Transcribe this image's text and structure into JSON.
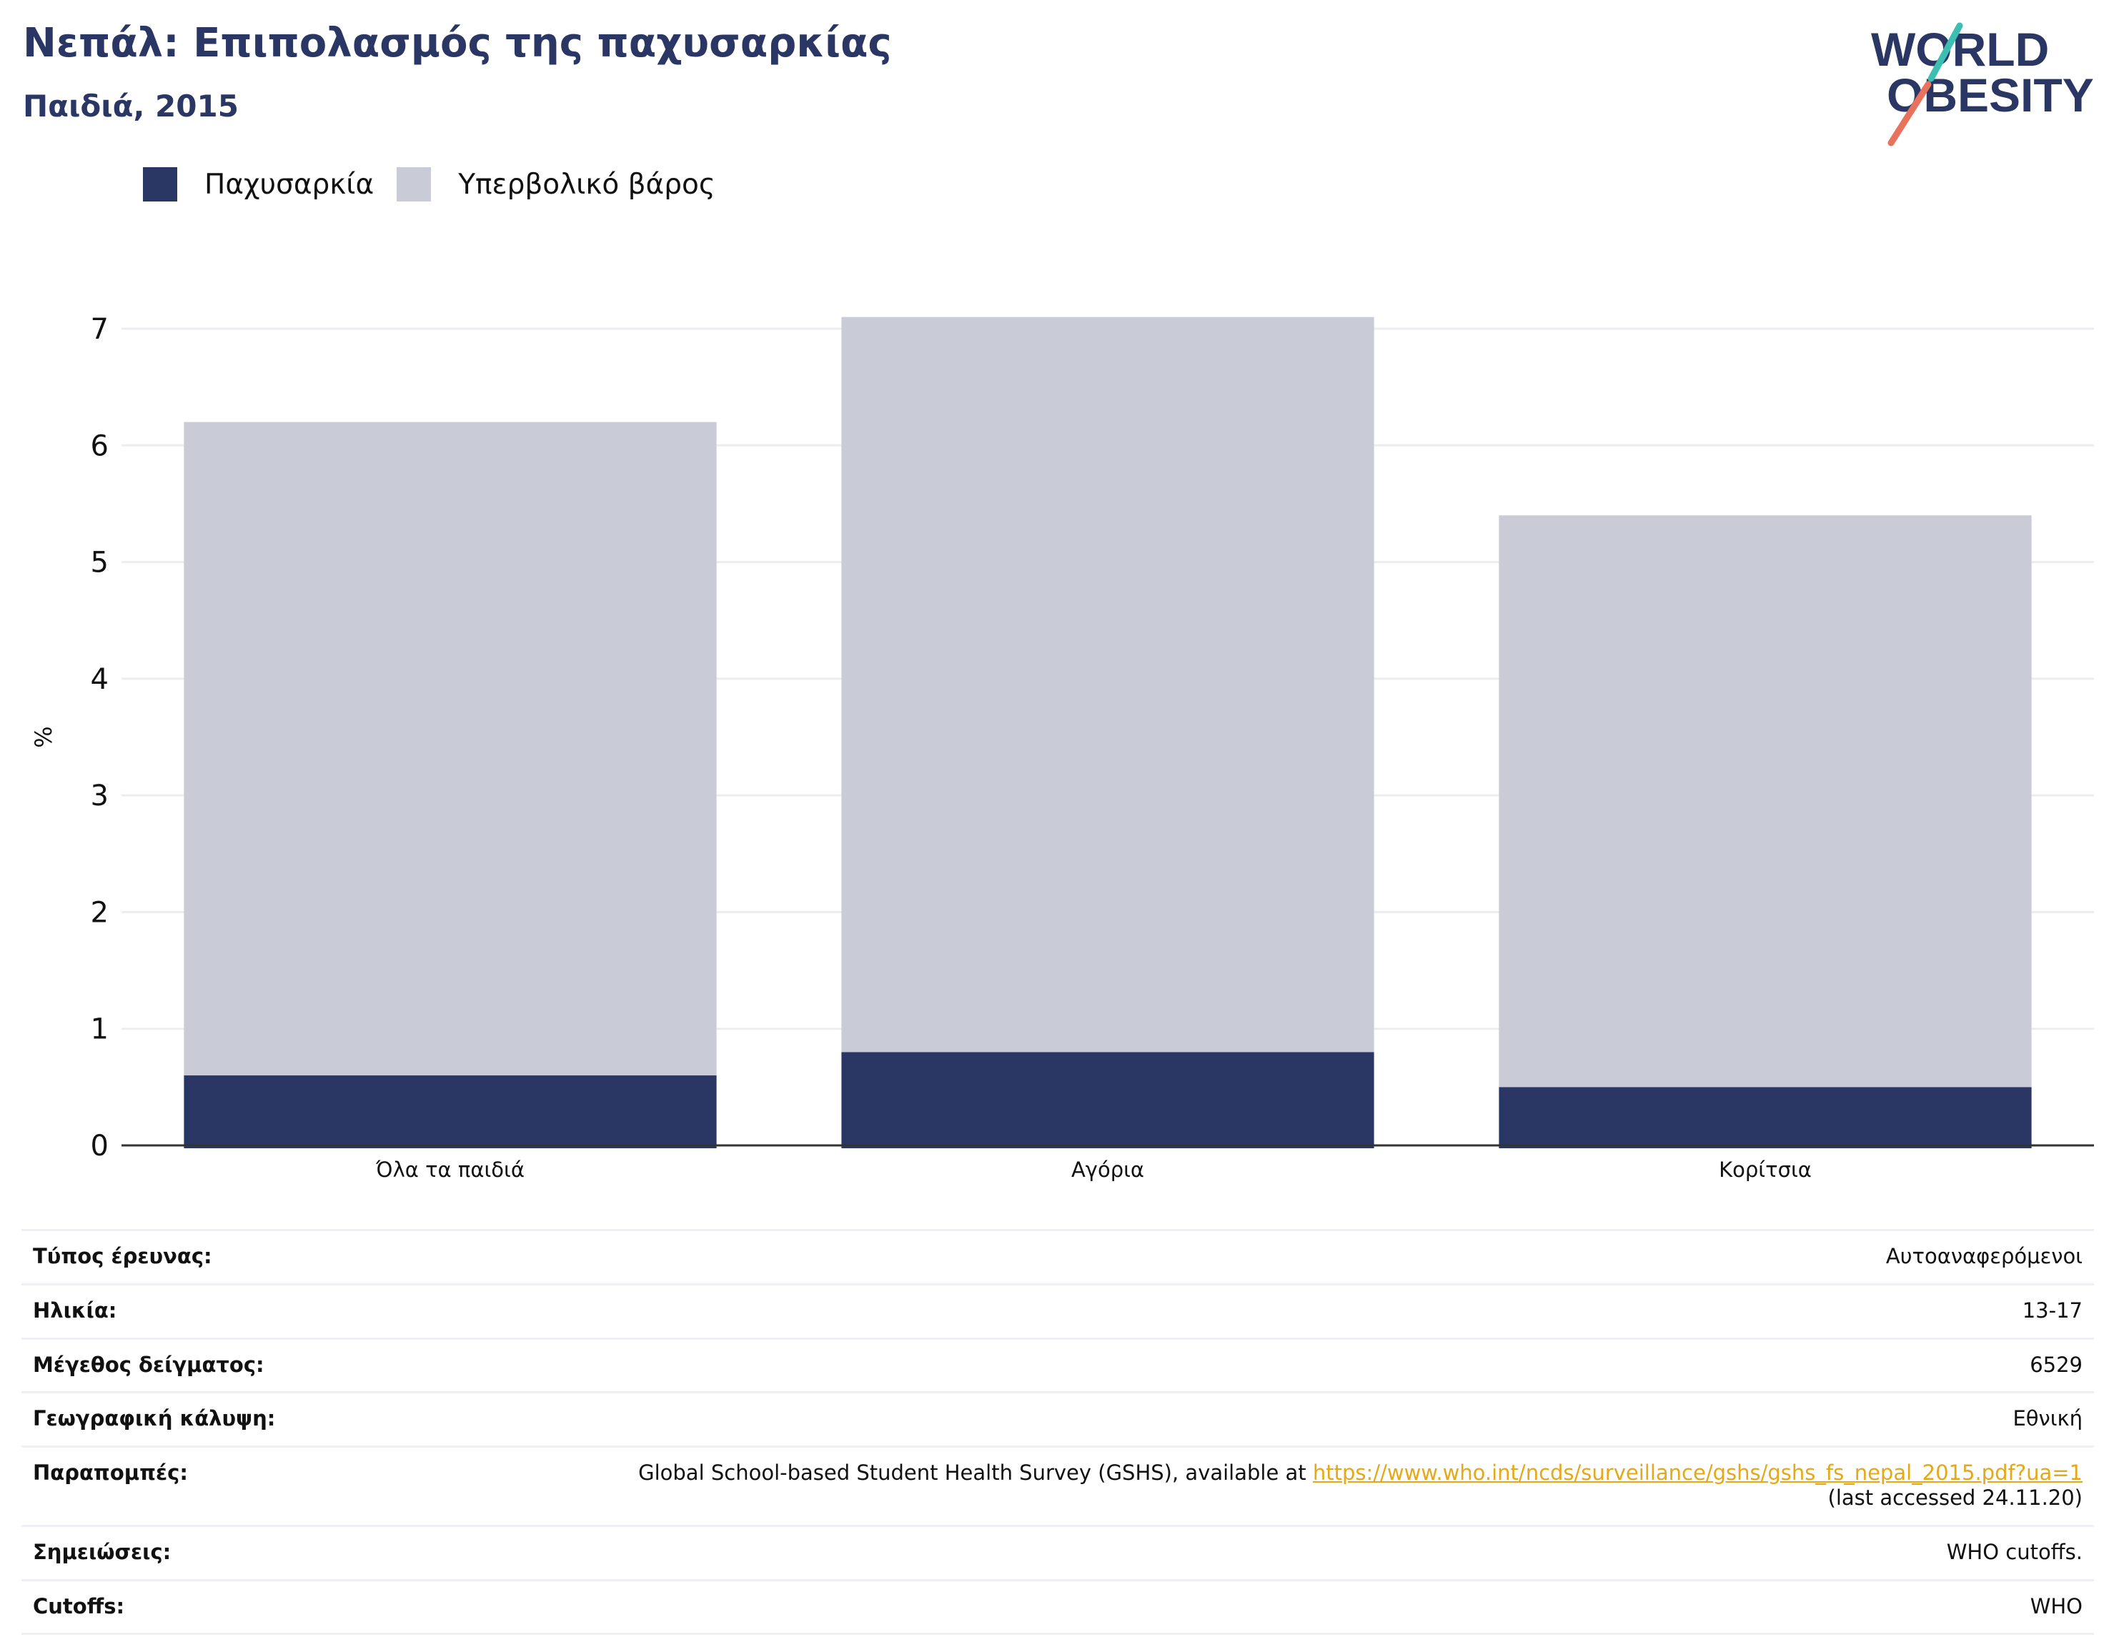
{
  "header": {
    "title": "Νεπάλ: Επιπολασμός της παχυσαρκίας",
    "subtitle": "Παιδιά, 2015",
    "logo_line1": "WORLD",
    "logo_line2": "OBESITY"
  },
  "colors": {
    "obesity": "#2a3664",
    "overweight": "#c9cbd7",
    "title": "#2a3664",
    "link": "#e6a817",
    "logo_teal": "#3bbfb3",
    "logo_coral": "#e8725c"
  },
  "chart_data": {
    "type": "bar",
    "stacked": true,
    "categories": [
      "Όλα τα παιδιά",
      "Αγόρια",
      "Κορίτσια"
    ],
    "series": [
      {
        "name": "Παχυσαρκία",
        "values": [
          0.6,
          0.8,
          0.5
        ],
        "color": "#2a3664"
      },
      {
        "name": "Υπερβολικό βάρος",
        "values": [
          5.6,
          6.3,
          4.9
        ],
        "color": "#c9cbd7"
      }
    ],
    "ylabel": "%",
    "ylim": [
      0,
      7
    ],
    "yticks": [
      "0",
      "1",
      "2",
      "3",
      "4",
      "5",
      "6",
      "7"
    ],
    "grid": true,
    "legend": "top-left"
  },
  "info": [
    {
      "label": "Τύπος έρευνας:",
      "value": "Αυτοαναφερόμενοι"
    },
    {
      "label": "Ηλικία:",
      "value": "13-17"
    },
    {
      "label": "Μέγεθος δείγματος:",
      "value": "6529"
    },
    {
      "label": "Γεωγραφική κάλυψη:",
      "value": "Εθνική"
    },
    {
      "label": "Σημειώσεις:",
      "value": "WHO cutoffs."
    },
    {
      "label": "Cutoffs:",
      "value": "WHO"
    }
  ],
  "references": {
    "label": "Παραπομπές:",
    "text": "Global School-based Student Health Survey (GSHS), available at ",
    "link": "https://www.who.int/ncds/surveillance/gshs/gshs_fs_nepal_2015.pdf?ua=1",
    "accessed": "(last accessed 24.11.20)"
  }
}
